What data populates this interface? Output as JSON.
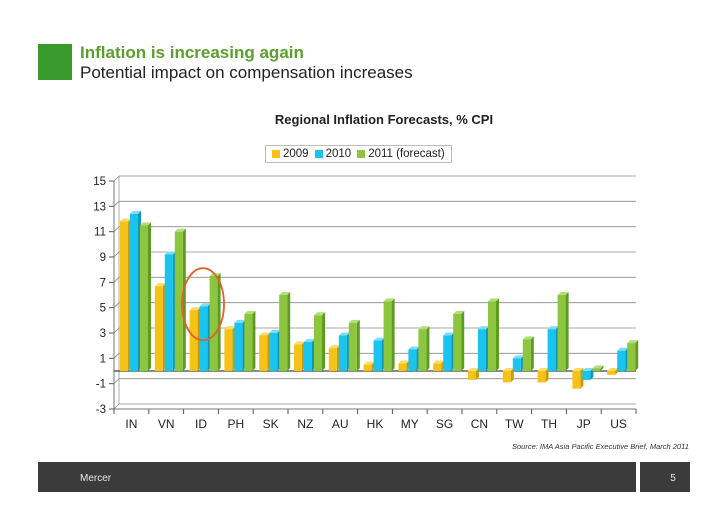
{
  "slide": {
    "title": "Inflation is increasing again",
    "subtitle": "Potential impact on compensation increases",
    "source": "Source: IMA Asia Pacific Executive Brief, March 2011",
    "footer": "Mercer",
    "page_number": "5"
  },
  "colors": {
    "accent": "#5aa02c",
    "series_2009": "#f5c318",
    "series_2010": "#19c4ef",
    "series_2011": "#8cc63f",
    "highlight": "#e0622a"
  },
  "chart_data": {
    "type": "bar",
    "title": "Regional Inflation Forecasts, % CPI",
    "categories": [
      "IN",
      "VN",
      "ID",
      "PH",
      "SK",
      "NZ",
      "AU",
      "HK",
      "MY",
      "SG",
      "CN",
      "TW",
      "TH",
      "JP",
      "US"
    ],
    "series": [
      {
        "name": "2009",
        "values": [
          11.8,
          6.7,
          4.8,
          3.3,
          2.8,
          2.1,
          1.8,
          0.5,
          0.6,
          0.6,
          -0.7,
          -0.9,
          -0.9,
          -1.4,
          -0.3
        ]
      },
      {
        "name": "2010",
        "values": [
          12.4,
          9.2,
          5.1,
          3.8,
          3.0,
          2.3,
          2.8,
          2.4,
          1.7,
          2.8,
          3.3,
          1.0,
          3.3,
          -0.7,
          1.6
        ]
      },
      {
        "name": "2011 (forecast)",
        "values": [
          11.5,
          11.0,
          7.5,
          4.5,
          6.0,
          4.4,
          3.8,
          5.5,
          3.3,
          4.5,
          5.5,
          2.5,
          6.0,
          0.2,
          2.2
        ]
      }
    ],
    "xlabel": "",
    "ylabel": "",
    "ylim": [
      -3,
      15
    ],
    "yticks": [
      -3,
      -1,
      1,
      3,
      5,
      7,
      9,
      11,
      13,
      15
    ],
    "grid": true,
    "legend": "top",
    "annotations": [
      {
        "type": "circle",
        "category": "ID"
      }
    ]
  }
}
